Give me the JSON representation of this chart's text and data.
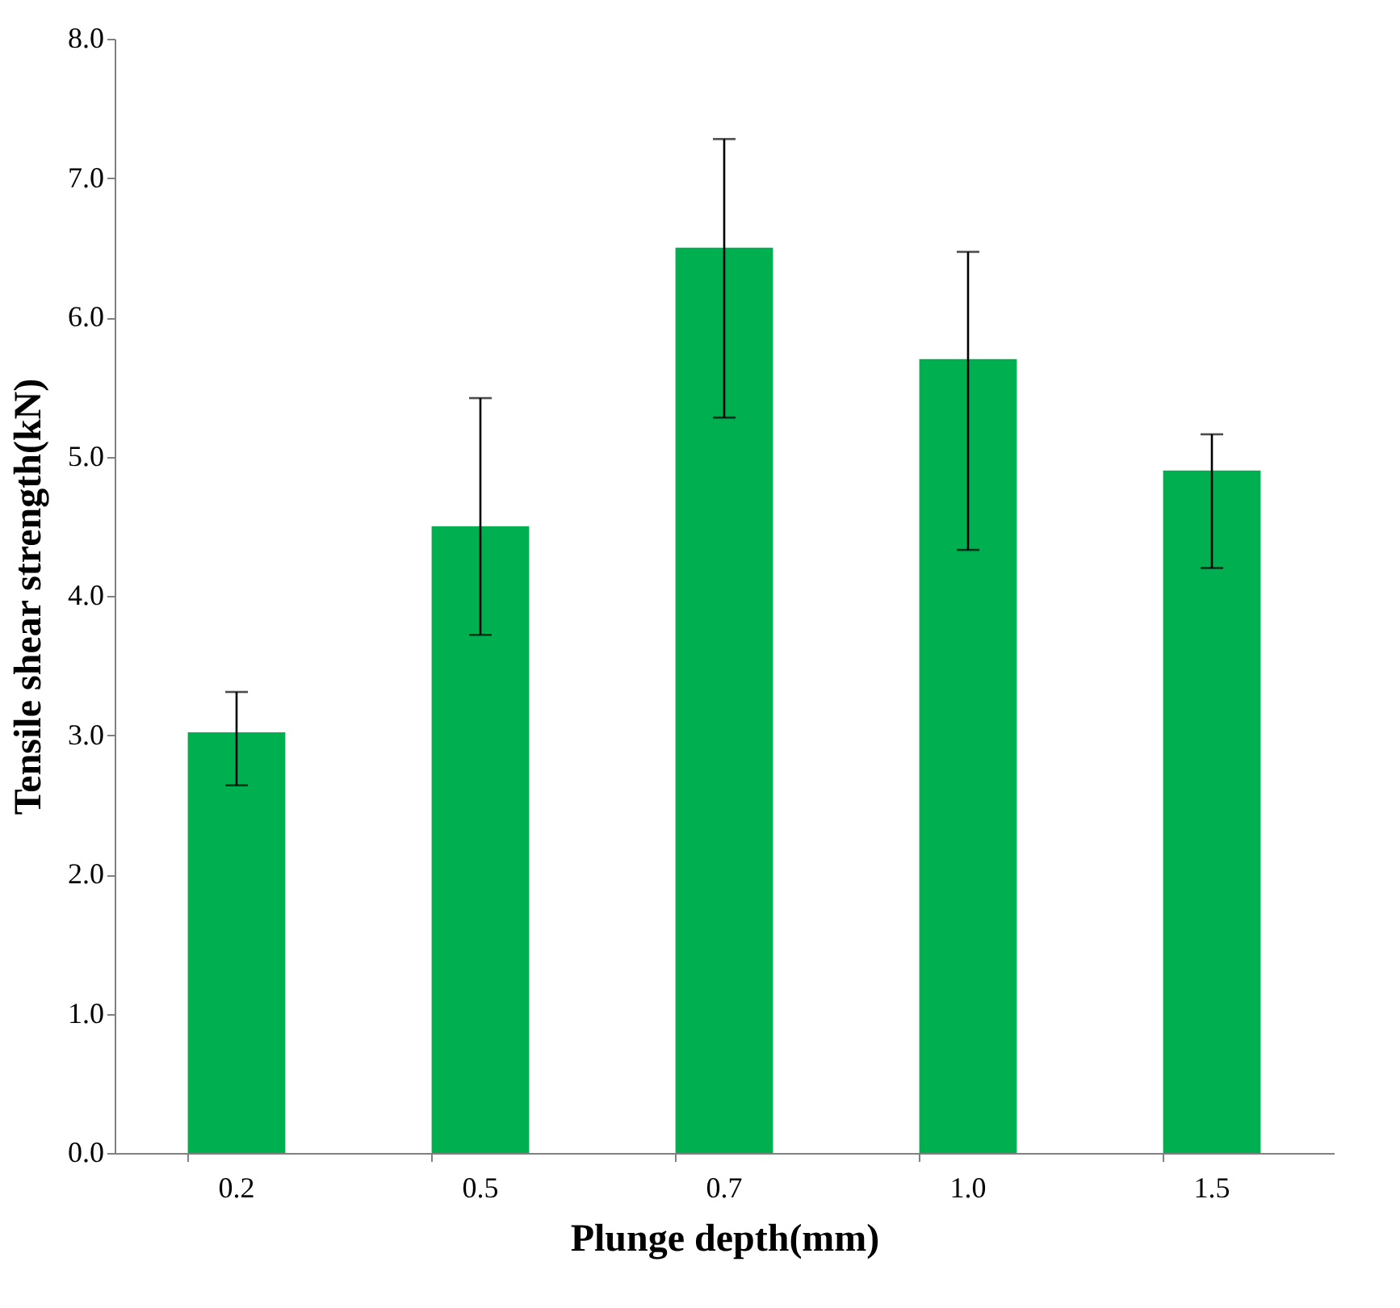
{
  "chart_data": {
    "type": "bar",
    "xlabel": "Plunge depth(mm)",
    "ylabel": "Tensile shear strength(kN)",
    "categories": [
      "0.2",
      "0.5",
      "0.7",
      "1.0",
      "1.5"
    ],
    "values": [
      3.02,
      4.5,
      6.5,
      5.7,
      4.9
    ],
    "errors": [
      [
        2.64,
        3.31
      ],
      [
        3.72,
        5.42
      ],
      [
        5.28,
        7.28
      ],
      [
        4.33,
        6.47
      ],
      [
        4.2,
        5.16
      ]
    ],
    "color": "#00b050",
    "ylim": [
      0,
      8
    ],
    "yticks": [
      {
        "value": 0,
        "label": "0.0"
      },
      {
        "value": 1,
        "label": "1.0"
      },
      {
        "value": 2,
        "label": "2.0"
      },
      {
        "value": 3,
        "label": "3.0"
      },
      {
        "value": 4,
        "label": "4.0"
      },
      {
        "value": 5,
        "label": "5.0"
      },
      {
        "value": 6,
        "label": "6.0"
      },
      {
        "value": 7,
        "label": "7.0"
      },
      {
        "value": 8,
        "label": "8.0"
      }
    ],
    "grid": false
  }
}
